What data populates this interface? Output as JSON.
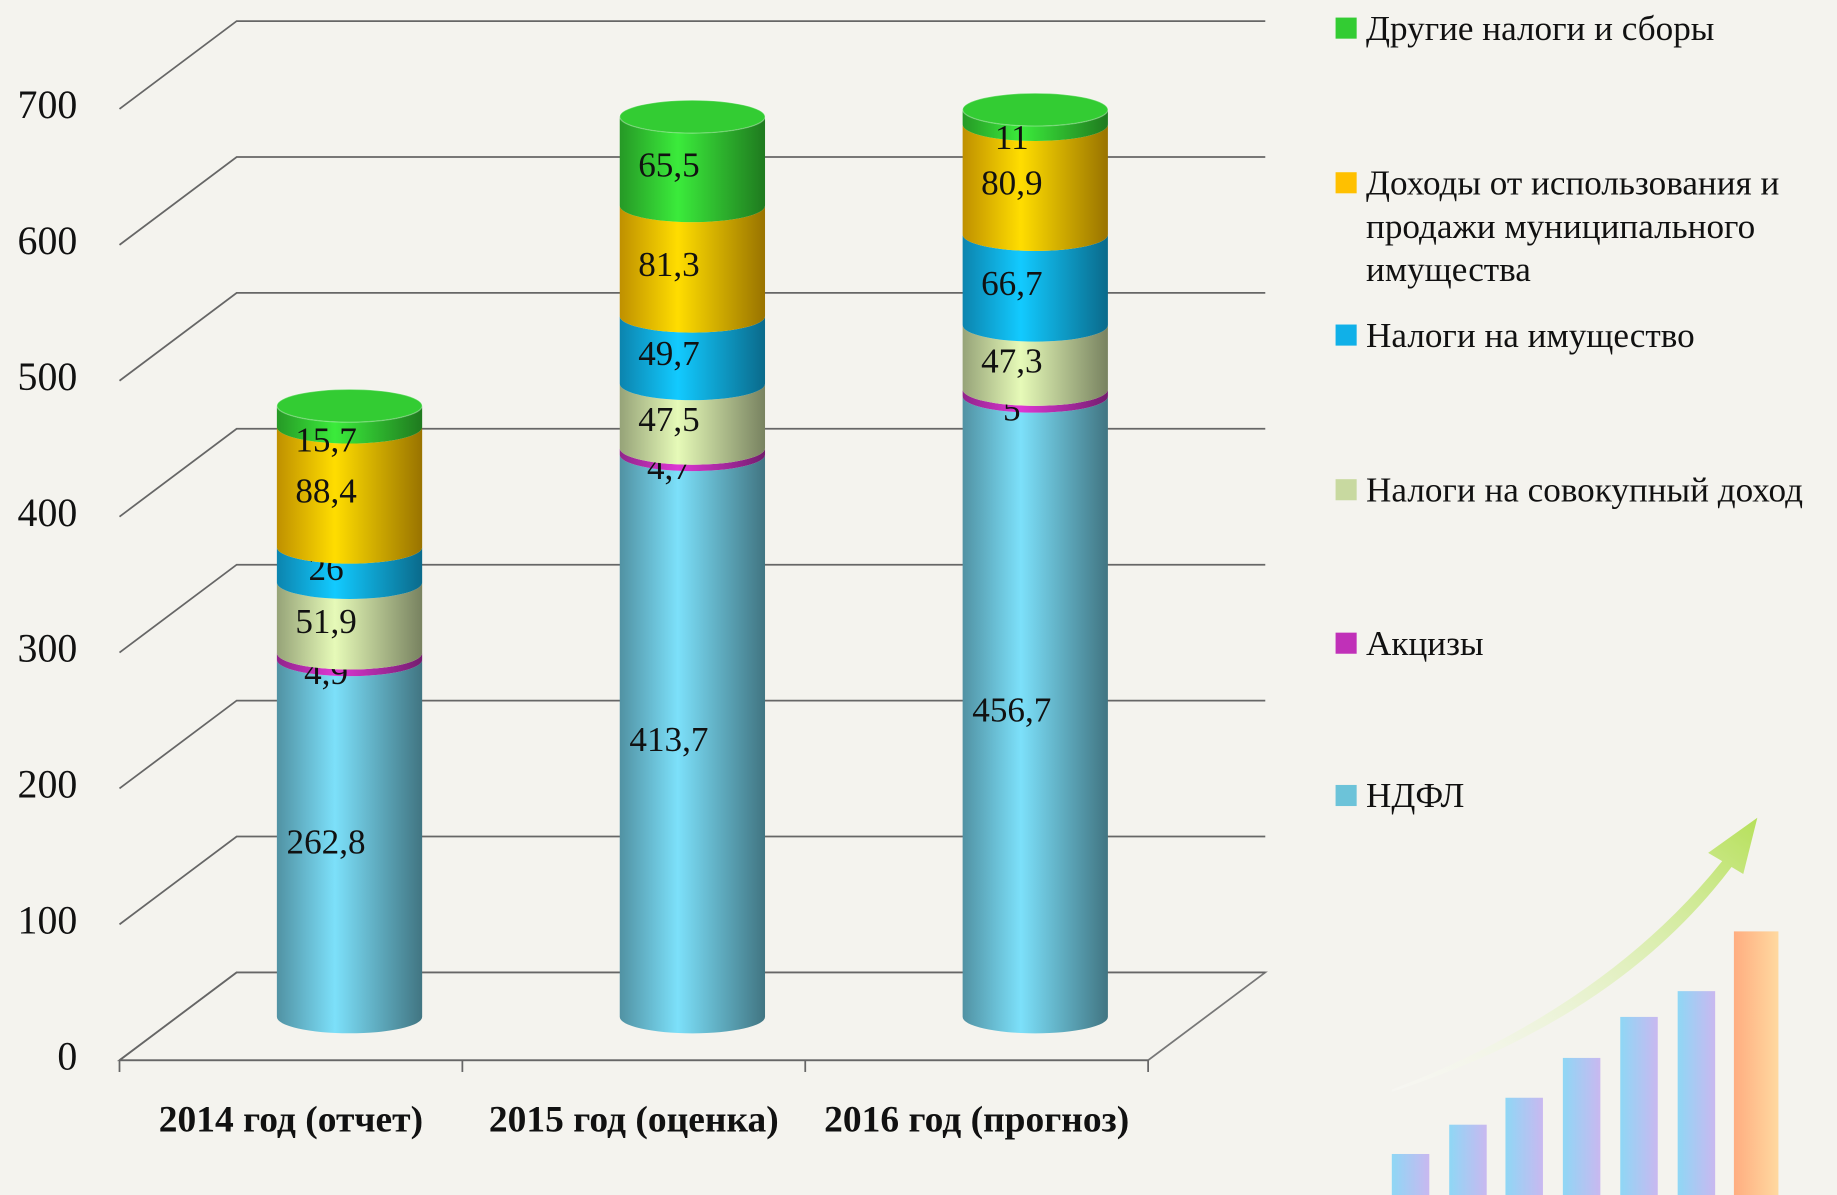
{
  "chart_data": {
    "type": "bar3d-stacked",
    "categories": [
      "2014 год (отчет)",
      "2015 год (оценка)",
      "2016 год (прогноз)"
    ],
    "series": [
      {
        "name": "НДФЛ",
        "color": "#6cc3d9",
        "values": [
          262.8,
          413.7,
          456.7
        ],
        "value_labels": [
          "262,8",
          "413,7",
          "456,7"
        ]
      },
      {
        "name": "Акцизы",
        "color": "#c030b8",
        "values": [
          4.9,
          4.7,
          5
        ],
        "value_labels": [
          "4,9",
          "4,7",
          "5"
        ]
      },
      {
        "name": "Налоги на совокупный доход",
        "color": "#c8d9a0",
        "values": [
          51.9,
          47.5,
          47.3
        ],
        "value_labels": [
          "51,9",
          "47,5",
          "47,3"
        ]
      },
      {
        "name": "Налоги на имущество",
        "color": "#10b0e8",
        "values": [
          26,
          49.7,
          66.7
        ],
        "value_labels": [
          "26",
          "49,7",
          "66,7"
        ]
      },
      {
        "name": "Доходы от использования и продажи муниципального имущества",
        "color": "#ffc000",
        "values": [
          88.4,
          81.3,
          80.9
        ],
        "value_labels": [
          "88,4",
          "81,3",
          "80,9"
        ]
      },
      {
        "name": "Другие налоги и сборы",
        "color": "#33cc33",
        "values": [
          15.7,
          65.5,
          11
        ],
        "value_labels": [
          "15,7",
          "65,5",
          "11"
        ]
      }
    ],
    "ylim": [
      0,
      700
    ],
    "yticks": [
      0,
      100,
      200,
      300,
      400,
      500,
      600,
      700
    ],
    "grid": true,
    "legend": "right"
  }
}
